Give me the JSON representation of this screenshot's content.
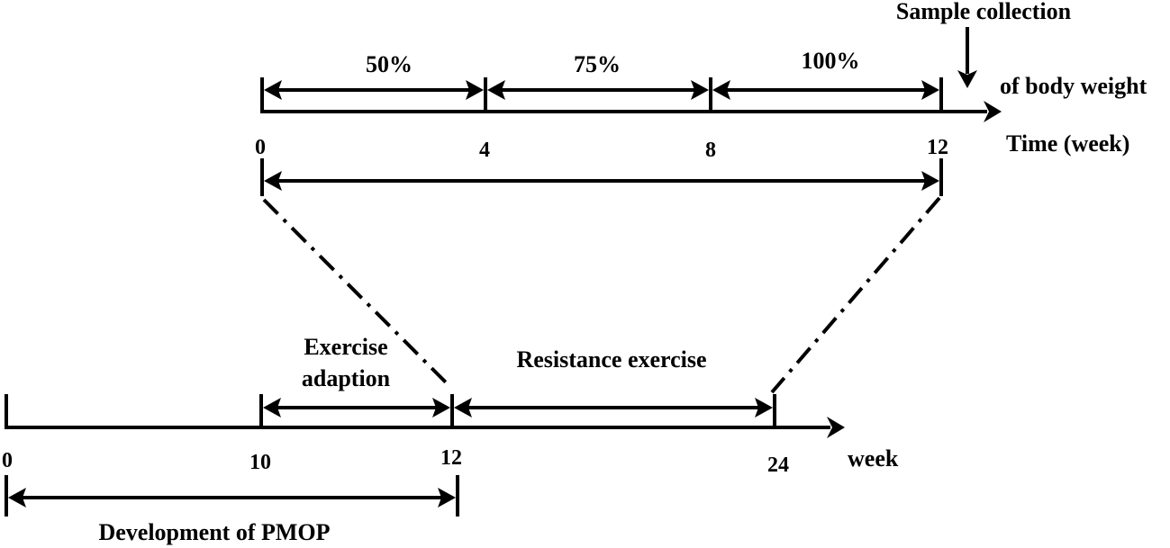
{
  "top_timeline": {
    "phase_labels": [
      "50%",
      "75%",
      "100%"
    ],
    "ticks": [
      "0",
      "4",
      "8",
      "12"
    ],
    "axis_label": "Time (week)",
    "body_weight_label": "of body weight",
    "sample_label": "Sample collection"
  },
  "bottom_timeline": {
    "ticks": [
      "0",
      "10",
      "12",
      "24"
    ],
    "axis_label": "week",
    "adaption_label_1": "Exercise",
    "adaption_label_2": "adaption",
    "resistance_label": "Resistance exercise",
    "development_label": "Development of PMOP"
  }
}
